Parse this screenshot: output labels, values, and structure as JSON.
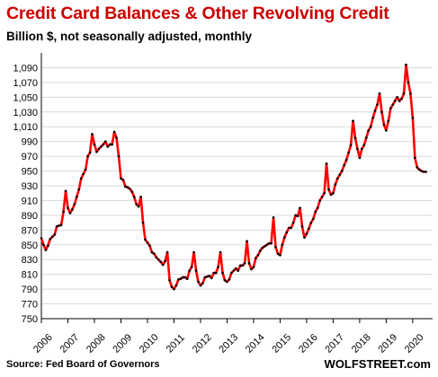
{
  "title": "Credit Card Balances & Other Revolving Credit",
  "subtitle": "Billion $, not seasonally adjusted, monthly",
  "source": "Source: Fed Board of Governors",
  "brand": "WOLFSTREET.com",
  "colors": {
    "title": "#cc0000",
    "line": "#ff0000",
    "marker": "#000000",
    "grid": "#d9d9d9"
  },
  "chart_data": {
    "type": "line",
    "title": "Credit Card Balances & Other Revolving Credit",
    "subtitle": "Billion $, not seasonally adjusted, monthly",
    "xlabel": "",
    "ylabel": "",
    "ylim": [
      750,
      1110
    ],
    "yticks": [
      750,
      770,
      790,
      810,
      830,
      850,
      870,
      890,
      910,
      930,
      950,
      970,
      990,
      1010,
      1030,
      1050,
      1070,
      1090
    ],
    "ytick_labels": [
      "750",
      "770",
      "790",
      "810",
      "830",
      "850",
      "870",
      "890",
      "910",
      "930",
      "950",
      "970",
      "990",
      "1,010",
      "1,030",
      "1,050",
      "1,070",
      "1,090"
    ],
    "xlim": [
      2006,
      2020.75
    ],
    "xticks": [
      "2006",
      "2007",
      "2008",
      "2009",
      "2010",
      "2011",
      "2012",
      "2013",
      "2014",
      "2015",
      "2016",
      "2017",
      "2018",
      "2019",
      "2020"
    ],
    "grid": true,
    "legend": "none",
    "series": [
      {
        "start": "2006-01",
        "frequency": "monthly",
        "values": [
          859,
          850,
          843,
          849,
          858,
          861,
          864,
          875,
          876,
          877,
          895,
          923,
          900,
          893,
          898,
          905,
          915,
          925,
          940,
          946,
          952,
          970,
          975,
          1000,
          986,
          976,
          980,
          983,
          986,
          990,
          983,
          986,
          986,
          1003,
          995,
          970,
          940,
          938,
          929,
          928,
          926,
          922,
          915,
          905,
          902,
          915,
          880,
          857,
          853,
          849,
          840,
          838,
          833,
          830,
          827,
          823,
          828,
          840,
          802,
          793,
          790,
          795,
          803,
          804,
          806,
          806,
          804,
          815,
          820,
          840,
          815,
          800,
          795,
          798,
          806,
          807,
          808,
          805,
          812,
          812,
          820,
          840,
          812,
          802,
          800,
          803,
          812,
          815,
          818,
          815,
          822,
          822,
          825,
          855,
          825,
          817,
          820,
          832,
          836,
          842,
          846,
          848,
          850,
          852,
          852,
          887,
          847,
          838,
          836,
          850,
          860,
          867,
          873,
          873,
          880,
          890,
          889,
          900,
          875,
          860,
          865,
          872,
          880,
          885,
          895,
          900,
          910,
          915,
          920,
          960,
          925,
          918,
          920,
          932,
          940,
          945,
          950,
          958,
          965,
          975,
          985,
          1018,
          995,
          980,
          968,
          980,
          985,
          995,
          1005,
          1010,
          1022,
          1032,
          1040,
          1055,
          1030,
          1013,
          1005,
          1018,
          1035,
          1040,
          1045,
          1050,
          1045,
          1048,
          1055,
          1094,
          1070,
          1055,
          1022,
          968,
          955,
          952,
          950,
          949,
          949
        ]
      }
    ]
  }
}
